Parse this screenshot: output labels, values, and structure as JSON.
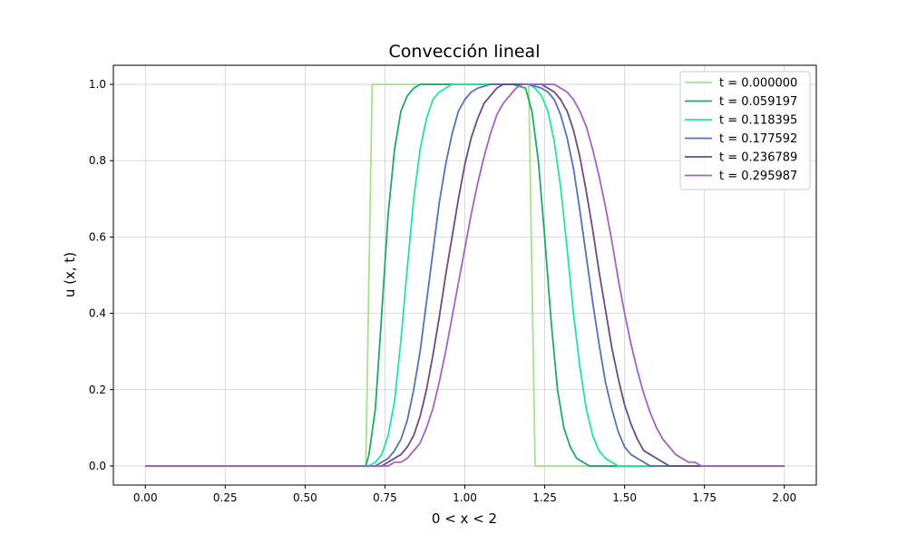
{
  "chart_data": {
    "type": "line",
    "title": "Convección lineal",
    "xlabel": "0 < x < 2",
    "ylabel": "u (x, t)",
    "xlim": [
      -0.1,
      2.1
    ],
    "ylim": [
      -0.05,
      1.05
    ],
    "xticks": [
      "0.00",
      "0.25",
      "0.50",
      "0.75",
      "1.00",
      "1.25",
      "1.50",
      "1.75",
      "2.00"
    ],
    "yticks": [
      "0.0",
      "0.2",
      "0.4",
      "0.6",
      "0.8",
      "1.0"
    ],
    "grid": true,
    "legend_position": "top-right",
    "series": [
      {
        "name": "t =  0.000000",
        "color": "#a8e38c",
        "x": [
          0.0,
          0.69,
          0.71,
          1.2,
          1.22,
          2.0
        ],
        "y": [
          0.0,
          0.0,
          1.0,
          1.0,
          0.0,
          0.0
        ]
      },
      {
        "name": "t =  0.059197",
        "color": "#1faa6a",
        "x": [
          0.0,
          0.69,
          0.7,
          0.72,
          0.74,
          0.76,
          0.78,
          0.8,
          0.82,
          0.84,
          0.86,
          0.88,
          0.9,
          1.0,
          1.15,
          1.19,
          1.21,
          1.23,
          1.25,
          1.27,
          1.29,
          1.31,
          1.33,
          1.35,
          1.37,
          1.39,
          1.41,
          1.45,
          1.5,
          2.0
        ],
        "y": [
          0.0,
          0.0,
          0.03,
          0.15,
          0.4,
          0.66,
          0.83,
          0.93,
          0.97,
          0.99,
          1.0,
          1.0,
          1.0,
          1.0,
          1.0,
          0.99,
          0.93,
          0.8,
          0.6,
          0.38,
          0.2,
          0.1,
          0.05,
          0.02,
          0.01,
          0.0,
          0.0,
          0.0,
          0.0,
          0.0
        ]
      },
      {
        "name": "t =  0.118395",
        "color": "#1ee89a",
        "x": [
          0.0,
          0.7,
          0.72,
          0.74,
          0.76,
          0.78,
          0.8,
          0.82,
          0.84,
          0.86,
          0.88,
          0.9,
          0.92,
          0.94,
          0.96,
          1.0,
          1.15,
          1.2,
          1.22,
          1.24,
          1.26,
          1.28,
          1.3,
          1.32,
          1.34,
          1.36,
          1.38,
          1.4,
          1.42,
          1.44,
          1.46,
          1.48,
          1.52,
          1.6,
          2.0
        ],
        "y": [
          0.0,
          0.0,
          0.01,
          0.03,
          0.08,
          0.17,
          0.33,
          0.52,
          0.7,
          0.83,
          0.91,
          0.96,
          0.98,
          0.99,
          1.0,
          1.0,
          1.0,
          1.0,
          0.99,
          0.97,
          0.93,
          0.85,
          0.73,
          0.57,
          0.4,
          0.26,
          0.15,
          0.08,
          0.04,
          0.02,
          0.01,
          0.0,
          0.0,
          0.0,
          0.0
        ]
      },
      {
        "name": "t =  0.177592",
        "color": "#5572b8",
        "x": [
          0.0,
          0.72,
          0.74,
          0.76,
          0.78,
          0.8,
          0.82,
          0.84,
          0.86,
          0.88,
          0.9,
          0.92,
          0.94,
          0.96,
          0.98,
          1.0,
          1.02,
          1.04,
          1.08,
          1.15,
          1.2,
          1.24,
          1.26,
          1.28,
          1.3,
          1.32,
          1.34,
          1.36,
          1.38,
          1.4,
          1.42,
          1.44,
          1.46,
          1.48,
          1.5,
          1.52,
          1.54,
          1.56,
          1.58,
          1.62,
          1.7,
          2.0
        ],
        "y": [
          0.0,
          0.0,
          0.01,
          0.02,
          0.04,
          0.07,
          0.12,
          0.2,
          0.3,
          0.43,
          0.56,
          0.69,
          0.79,
          0.87,
          0.93,
          0.96,
          0.98,
          0.99,
          1.0,
          1.0,
          1.0,
          0.99,
          0.98,
          0.96,
          0.92,
          0.86,
          0.78,
          0.67,
          0.55,
          0.43,
          0.32,
          0.22,
          0.15,
          0.09,
          0.05,
          0.03,
          0.02,
          0.01,
          0.0,
          0.0,
          0.0,
          0.0
        ]
      },
      {
        "name": "t =  0.236789",
        "color": "#6e4a7e",
        "x": [
          0.0,
          0.74,
          0.76,
          0.78,
          0.8,
          0.82,
          0.84,
          0.86,
          0.88,
          0.9,
          0.92,
          0.94,
          0.96,
          0.98,
          1.0,
          1.02,
          1.04,
          1.06,
          1.08,
          1.1,
          1.12,
          1.16,
          1.2,
          1.24,
          1.26,
          1.28,
          1.3,
          1.32,
          1.34,
          1.36,
          1.38,
          1.4,
          1.42,
          1.44,
          1.46,
          1.48,
          1.5,
          1.52,
          1.54,
          1.56,
          1.58,
          1.6,
          1.62,
          1.64,
          1.66,
          1.7,
          1.8,
          2.0
        ],
        "y": [
          0.0,
          0.0,
          0.01,
          0.02,
          0.03,
          0.05,
          0.08,
          0.13,
          0.2,
          0.29,
          0.39,
          0.5,
          0.6,
          0.7,
          0.79,
          0.86,
          0.91,
          0.95,
          0.97,
          0.99,
          1.0,
          1.0,
          1.0,
          1.0,
          0.99,
          0.98,
          0.96,
          0.93,
          0.88,
          0.81,
          0.72,
          0.62,
          0.51,
          0.41,
          0.31,
          0.23,
          0.16,
          0.11,
          0.07,
          0.04,
          0.03,
          0.02,
          0.01,
          0.0,
          0.0,
          0.0,
          0.0,
          0.0
        ]
      },
      {
        "name": "t =  0.295987",
        "color": "#a463c4",
        "x": [
          0.0,
          0.76,
          0.78,
          0.8,
          0.82,
          0.84,
          0.86,
          0.88,
          0.9,
          0.92,
          0.94,
          0.96,
          0.98,
          1.0,
          1.02,
          1.04,
          1.06,
          1.08,
          1.1,
          1.12,
          1.14,
          1.16,
          1.18,
          1.2,
          1.24,
          1.28,
          1.3,
          1.32,
          1.34,
          1.36,
          1.38,
          1.4,
          1.42,
          1.44,
          1.46,
          1.48,
          1.5,
          1.52,
          1.54,
          1.56,
          1.58,
          1.6,
          1.62,
          1.64,
          1.66,
          1.68,
          1.7,
          1.72,
          1.74,
          1.78,
          1.85,
          2.0
        ],
        "y": [
          0.0,
          0.0,
          0.01,
          0.01,
          0.02,
          0.04,
          0.06,
          0.1,
          0.15,
          0.22,
          0.3,
          0.39,
          0.48,
          0.57,
          0.66,
          0.74,
          0.81,
          0.87,
          0.92,
          0.95,
          0.97,
          0.99,
          1.0,
          1.0,
          1.0,
          1.0,
          0.99,
          0.98,
          0.96,
          0.93,
          0.89,
          0.83,
          0.76,
          0.68,
          0.59,
          0.49,
          0.4,
          0.32,
          0.25,
          0.19,
          0.14,
          0.1,
          0.07,
          0.05,
          0.03,
          0.02,
          0.01,
          0.01,
          0.0,
          0.0,
          0.0,
          0.0
        ]
      }
    ]
  }
}
